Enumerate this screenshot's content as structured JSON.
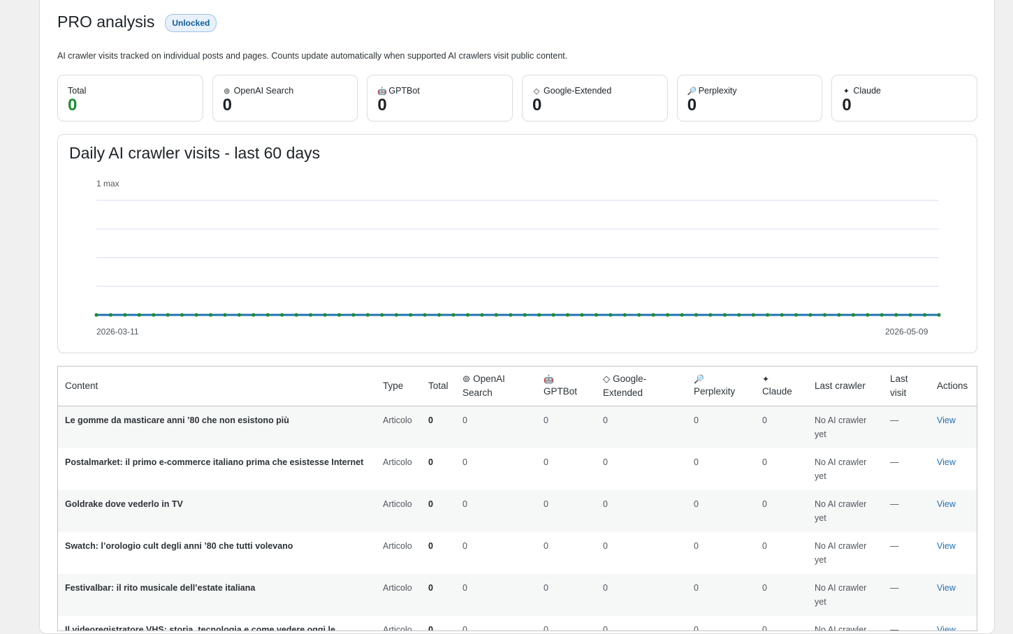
{
  "header": {
    "title": "PRO analysis",
    "badge": "Unlocked"
  },
  "description": "AI crawler visits tracked on individual posts and pages. Counts update automatically when supported AI crawlers visit public content.",
  "cards": [
    {
      "label": "Total",
      "value": "0",
      "icon": ""
    },
    {
      "label": "OpenAI Search",
      "value": "0",
      "icon": "⊚"
    },
    {
      "label": "GPTBot",
      "value": "0",
      "icon": "🤖"
    },
    {
      "label": "Google-Extended",
      "value": "0",
      "icon": "◇"
    },
    {
      "label": "Perplexity",
      "value": "0",
      "icon": "🔎"
    },
    {
      "label": "Claude",
      "value": "0",
      "icon": "✦"
    }
  ],
  "colors": {
    "total_green": "#1a8f2f",
    "line_blue": "#2271b1",
    "point_green": "#1a8f2f",
    "link": "#2271b1"
  },
  "chart_data": {
    "type": "line",
    "title": "Daily AI crawler visits - last 60 days",
    "max_label": "1 max",
    "x_start_label": "2026-03-11",
    "x_end_label": "2026-05-09",
    "ylim": [
      0,
      1
    ],
    "values": [
      0,
      0,
      0,
      0,
      0,
      0,
      0,
      0,
      0,
      0,
      0,
      0,
      0,
      0,
      0,
      0,
      0,
      0,
      0,
      0,
      0,
      0,
      0,
      0,
      0,
      0,
      0,
      0,
      0,
      0,
      0,
      0,
      0,
      0,
      0,
      0,
      0,
      0,
      0,
      0,
      0,
      0,
      0,
      0,
      0,
      0,
      0,
      0,
      0,
      0,
      0,
      0,
      0,
      0,
      0,
      0,
      0,
      0,
      0,
      0
    ],
    "grid": true
  },
  "table": {
    "columns": {
      "content": "Content",
      "type": "Type",
      "total": "Total",
      "openai": "OpenAI Search",
      "openai_icon": "⊚",
      "gptbot": "GPTBot",
      "gptbot_icon": "🤖",
      "google": "Google-Extended",
      "google_icon": "◇",
      "perplexity": "Perplexity",
      "perplexity_icon": "🔎",
      "claude": "Claude",
      "claude_icon": "✦",
      "last_crawler": "Last crawler",
      "last_visit": "Last visit",
      "actions": "Actions"
    },
    "rows": [
      {
        "title": "Le gomme da masticare anni ’80 che non esistono più",
        "type": "Articolo",
        "total": "0",
        "openai": "0",
        "gptbot": "0",
        "google": "0",
        "perplexity": "0",
        "claude": "0",
        "last_crawler": "No AI crawler yet",
        "last_visit": "—",
        "action": "View"
      },
      {
        "title": "Postalmarket: il primo e-commerce italiano prima che esistesse Internet",
        "type": "Articolo",
        "total": "0",
        "openai": "0",
        "gptbot": "0",
        "google": "0",
        "perplexity": "0",
        "claude": "0",
        "last_crawler": "No AI crawler yet",
        "last_visit": "—",
        "action": "View"
      },
      {
        "title": "Goldrake dove vederlo in TV",
        "type": "Articolo",
        "total": "0",
        "openai": "0",
        "gptbot": "0",
        "google": "0",
        "perplexity": "0",
        "claude": "0",
        "last_crawler": "No AI crawler yet",
        "last_visit": "—",
        "action": "View"
      },
      {
        "title": "Swatch: l’orologio cult degli anni ’80 che tutti volevano",
        "type": "Articolo",
        "total": "0",
        "openai": "0",
        "gptbot": "0",
        "google": "0",
        "perplexity": "0",
        "claude": "0",
        "last_crawler": "No AI crawler yet",
        "last_visit": "—",
        "action": "View"
      },
      {
        "title": "Festivalbar: il rito musicale dell’estate italiana",
        "type": "Articolo",
        "total": "0",
        "openai": "0",
        "gptbot": "0",
        "google": "0",
        "perplexity": "0",
        "claude": "0",
        "last_crawler": "No AI crawler yet",
        "last_visit": "—",
        "action": "View"
      },
      {
        "title": "Il videoregistratore VHS: storia, tecnologia e come vedere oggi le vecchie videocassette",
        "type": "Articolo",
        "total": "0",
        "openai": "0",
        "gptbot": "0",
        "google": "0",
        "perplexity": "0",
        "claude": "0",
        "last_crawler": "No AI crawler yet",
        "last_visit": "—",
        "action": "View"
      }
    ]
  }
}
